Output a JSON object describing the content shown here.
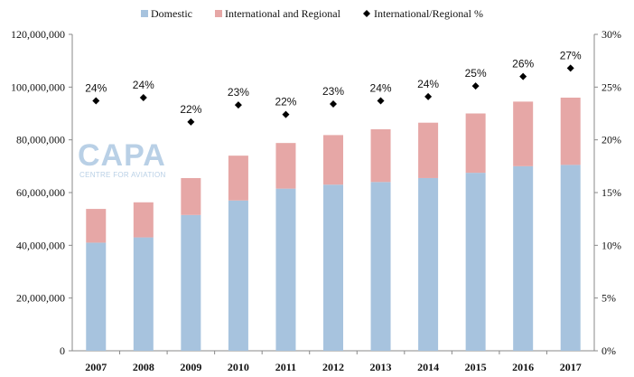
{
  "chart_data": {
    "type": "bar",
    "stacked": true,
    "categories": [
      "2007",
      "2008",
      "2009",
      "2010",
      "2011",
      "2012",
      "2013",
      "2014",
      "2015",
      "2016",
      "2017"
    ],
    "series": [
      {
        "name": "Domestic",
        "values": [
          41000000,
          43000000,
          51500000,
          57000000,
          61500000,
          63000000,
          64000000,
          65500000,
          67500000,
          70000000,
          70500000
        ],
        "color": "#a7c3de"
      },
      {
        "name": "International and Regional",
        "values": [
          12800000,
          13300000,
          14000000,
          17000000,
          17300000,
          18800000,
          20000000,
          21000000,
          22500000,
          24500000,
          25500000
        ],
        "color": "#e6a7a6"
      }
    ],
    "secondary_series": {
      "name": "International/Regional %",
      "type": "scatter",
      "marker": "diamond",
      "color": "#000000",
      "values": [
        23.7,
        24.0,
        21.7,
        23.3,
        22.4,
        23.4,
        23.7,
        24.1,
        25.1,
        26.0,
        26.8
      ],
      "labels": [
        "24%",
        "24%",
        "22%",
        "23%",
        "22%",
        "23%",
        "24%",
        "24%",
        "25%",
        "26%",
        "27%"
      ]
    },
    "ylim": [
      0,
      120000000
    ],
    "yticks": [
      "0",
      "20,000,000",
      "40,000,000",
      "60,000,000",
      "80,000,000",
      "100,000,000",
      "120,000,000"
    ],
    "y2lim": [
      0,
      30
    ],
    "y2ticks": [
      "0%",
      "5%",
      "10%",
      "15%",
      "20%",
      "25%",
      "30%"
    ],
    "legend_position": "top",
    "grid": false,
    "xlabel": "",
    "ylabel": ""
  },
  "legend": {
    "domestic": "Domestic",
    "intl": "International and Regional",
    "pct": "International/Regional %"
  },
  "watermark": {
    "main": "CAPA",
    "sub": "CENTRE FOR AVIATION"
  }
}
